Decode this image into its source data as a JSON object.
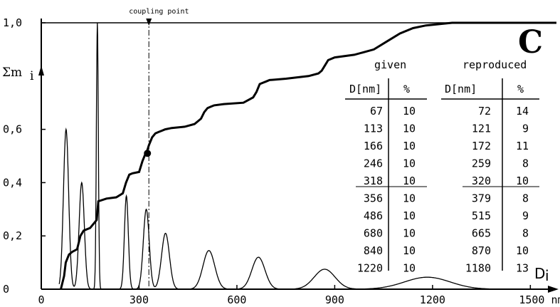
{
  "chart_data": {
    "type": "line",
    "panel_label": "C",
    "ylabel": "Σm",
    "ylabel_sub": "i",
    "xlabel": "D",
    "xlabel_sub": "i",
    "x_unit": "nm",
    "xlim": [
      0,
      1580
    ],
    "ylim": [
      0,
      1.0
    ],
    "x_ticks": [
      0,
      300,
      600,
      900,
      1200,
      1500
    ],
    "x_tick_labels": [
      "0",
      "300",
      "600",
      "900",
      "1200",
      "1500 nm"
    ],
    "y_ticks": [
      0,
      0.2,
      0.4,
      0.6,
      1.0
    ],
    "y_tick_labels": [
      "0",
      "0,2",
      "0,4",
      "0,6",
      "1,0"
    ],
    "coupling_point": {
      "label": "coupling point",
      "x": 330,
      "y": 0.51
    },
    "series": [
      {
        "kind": "cumulative",
        "x": [
          60,
          70,
          75,
          85,
          95,
          110,
          120,
          130,
          150,
          170,
          175,
          200,
          230,
          250,
          260,
          270,
          280,
          300,
          310,
          320,
          325,
          330,
          340,
          350,
          360,
          370,
          380,
          400,
          440,
          470,
          490,
          500,
          510,
          520,
          530,
          560,
          620,
          650,
          660,
          670,
          680,
          690,
          700,
          750,
          820,
          850,
          860,
          870,
          880,
          890,
          900,
          960,
          1020,
          1060,
          1100,
          1140,
          1180,
          1220,
          1260,
          1300,
          1340,
          1580
        ],
        "y": [
          0,
          0.05,
          0.1,
          0.13,
          0.14,
          0.15,
          0.2,
          0.22,
          0.23,
          0.26,
          0.33,
          0.34,
          0.345,
          0.36,
          0.4,
          0.43,
          0.435,
          0.44,
          0.48,
          0.51,
          0.52,
          0.54,
          0.57,
          0.585,
          0.59,
          0.595,
          0.6,
          0.605,
          0.61,
          0.62,
          0.64,
          0.665,
          0.68,
          0.685,
          0.69,
          0.695,
          0.7,
          0.72,
          0.74,
          0.77,
          0.775,
          0.78,
          0.785,
          0.79,
          0.8,
          0.81,
          0.82,
          0.84,
          0.86,
          0.865,
          0.87,
          0.88,
          0.9,
          0.93,
          0.96,
          0.98,
          0.99,
          0.995,
          1.0,
          1.0,
          1.0,
          1.0
        ]
      },
      {
        "kind": "distribution",
        "peaks": [
          {
            "center": 76,
            "height": 0.6,
            "width": 8
          },
          {
            "center": 124,
            "height": 0.4,
            "width": 8
          },
          {
            "center": 172,
            "height": 1.0,
            "width": 3
          },
          {
            "center": 261,
            "height": 0.35,
            "width": 6
          },
          {
            "center": 322,
            "height": 0.3,
            "width": 9
          },
          {
            "center": 381,
            "height": 0.21,
            "width": 12
          },
          {
            "center": 514,
            "height": 0.145,
            "width": 18
          },
          {
            "center": 666,
            "height": 0.12,
            "width": 20
          },
          {
            "center": 869,
            "height": 0.075,
            "width": 32
          },
          {
            "center": 1184,
            "height": 0.045,
            "width": 70
          }
        ]
      }
    ],
    "table": {
      "given_title": "given",
      "reproduced_title": "reproduced",
      "col_d": "D[nm]",
      "col_pct": "%",
      "given": [
        [
          "67",
          "10"
        ],
        [
          "113",
          "10"
        ],
        [
          "166",
          "10"
        ],
        [
          "246",
          "10"
        ],
        [
          "318",
          "10"
        ],
        [
          "356",
          "10"
        ],
        [
          "486",
          "10"
        ],
        [
          "680",
          "10"
        ],
        [
          "840",
          "10"
        ],
        [
          "1220",
          "10"
        ]
      ],
      "reproduced": [
        [
          "72",
          "14"
        ],
        [
          "121",
          "9"
        ],
        [
          "172",
          "11"
        ],
        [
          "259",
          "8"
        ],
        [
          "320",
          "10"
        ],
        [
          "379",
          "8"
        ],
        [
          "515",
          "9"
        ],
        [
          "665",
          "8"
        ],
        [
          "870",
          "10"
        ],
        [
          "1180",
          "13"
        ]
      ]
    }
  }
}
